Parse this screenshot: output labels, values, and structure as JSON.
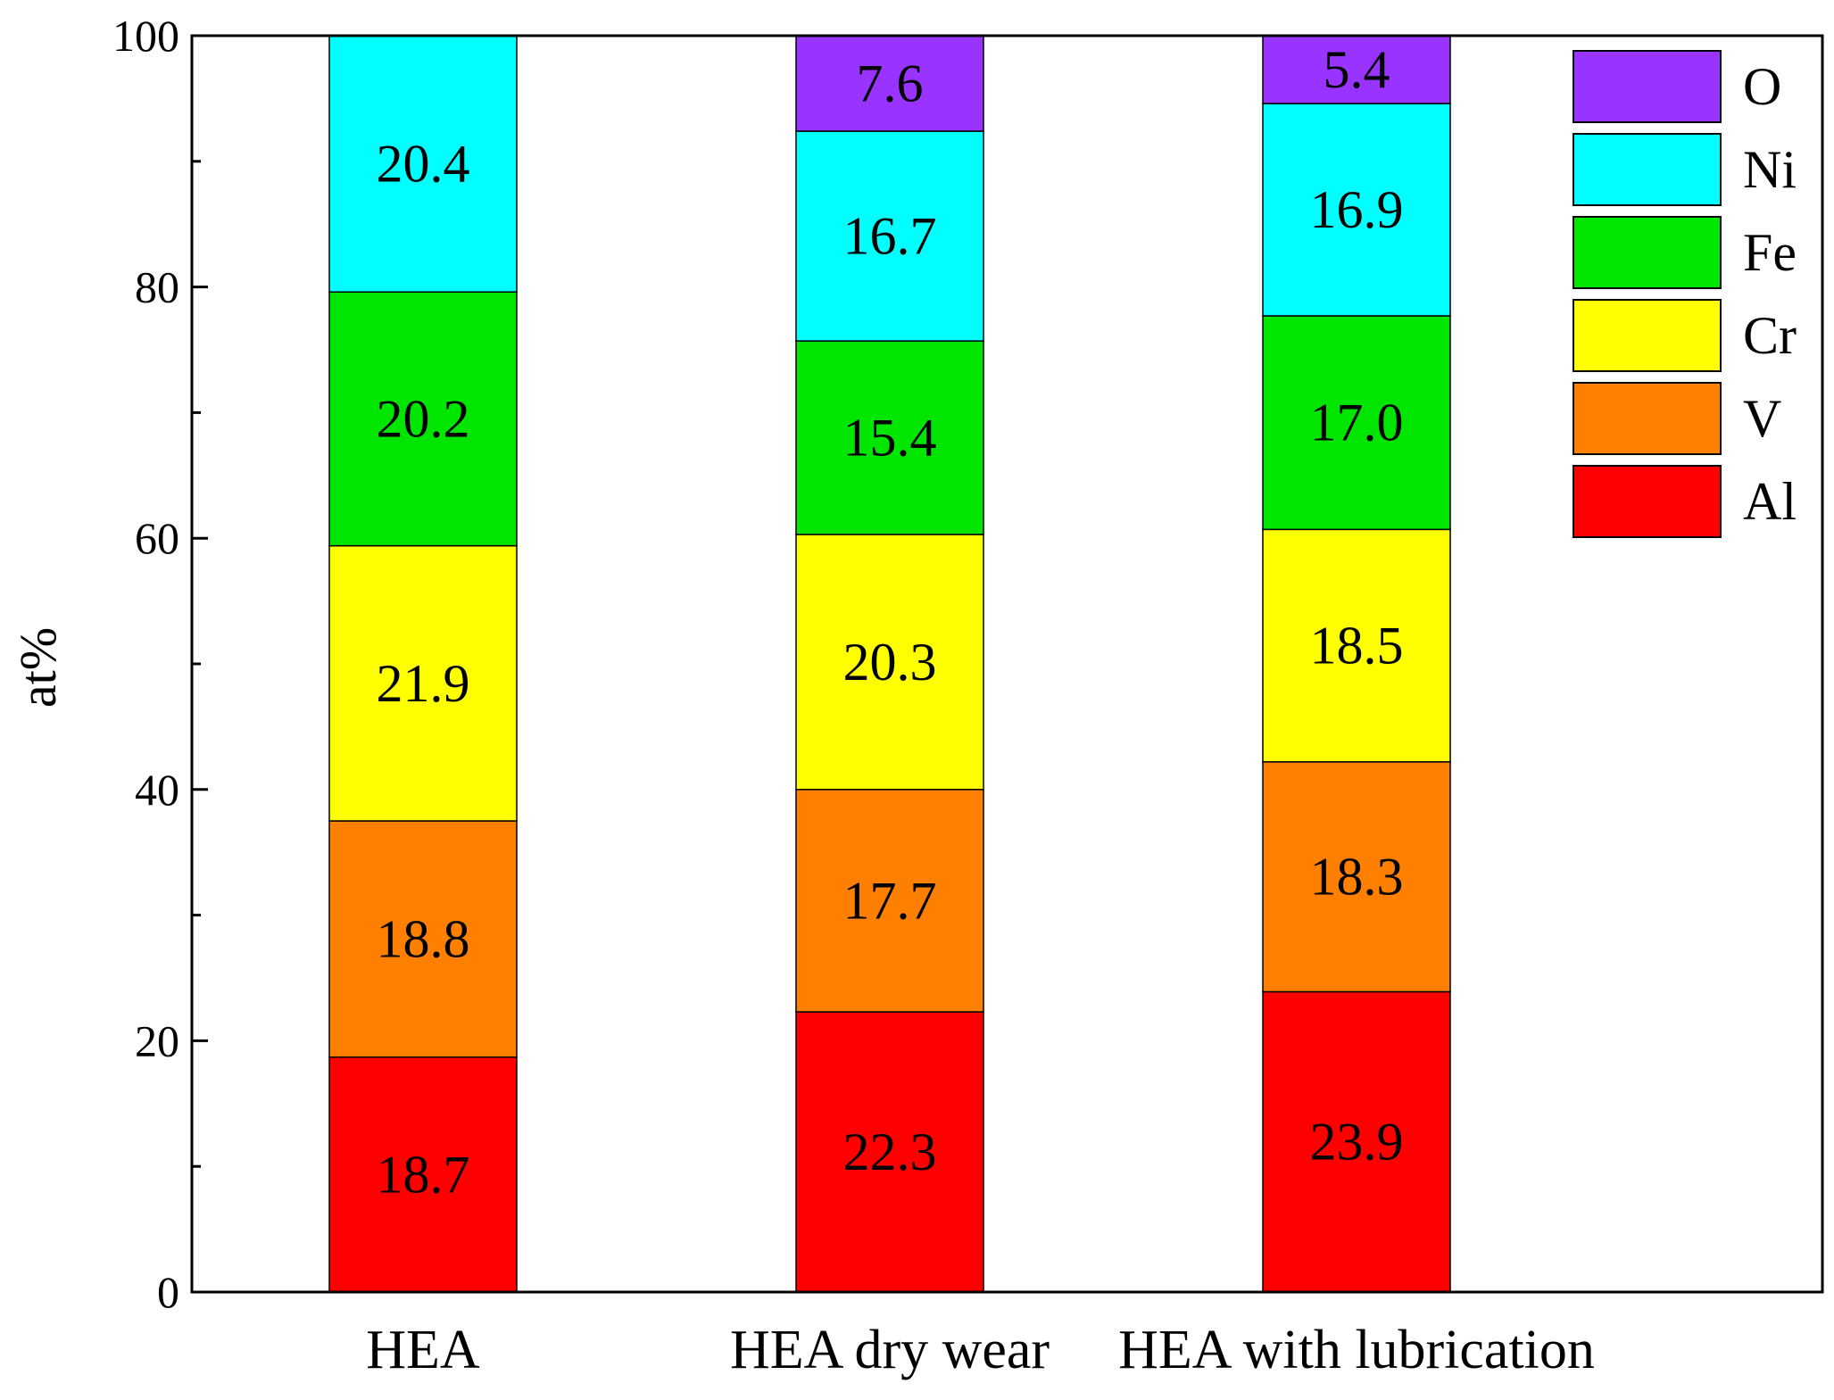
{
  "chart_data": {
    "type": "bar",
    "stacked": true,
    "title": "",
    "xlabel": "",
    "ylabel": "at%",
    "ylim": [
      0,
      100
    ],
    "yticks": [
      0,
      20,
      40,
      60,
      80,
      100
    ],
    "categories": [
      "HEA",
      "HEA dry wear",
      "HEA with lubrication"
    ],
    "series": [
      {
        "name": "Al",
        "color": "#ff0000",
        "values": [
          18.7,
          22.3,
          23.9
        ]
      },
      {
        "name": "V",
        "color": "#ff8000",
        "values": [
          18.8,
          17.7,
          18.3
        ]
      },
      {
        "name": "Cr",
        "color": "#ffff00",
        "values": [
          21.9,
          20.3,
          18.5
        ]
      },
      {
        "name": "Fe",
        "color": "#00e600",
        "values": [
          20.2,
          15.4,
          17.0
        ]
      },
      {
        "name": "Ni",
        "color": "#00ffff",
        "values": [
          20.4,
          16.7,
          16.9
        ]
      },
      {
        "name": "O",
        "color": "#9933ff",
        "values": [
          null,
          7.6,
          5.4
        ]
      }
    ],
    "value_labels": [
      [
        "18.7",
        "18.8",
        "21.9",
        "20.2",
        "20.4",
        null
      ],
      [
        "22.3",
        "17.7",
        "20.3",
        "15.4",
        "16.7",
        "7.6"
      ],
      [
        "23.9",
        "18.3",
        "18.5",
        "17.0",
        "16.9",
        "5.4"
      ]
    ],
    "legend_order": [
      "O",
      "Ni",
      "Fe",
      "Cr",
      "V",
      "Al"
    ],
    "legend_position": "top-right",
    "grid": false
  }
}
